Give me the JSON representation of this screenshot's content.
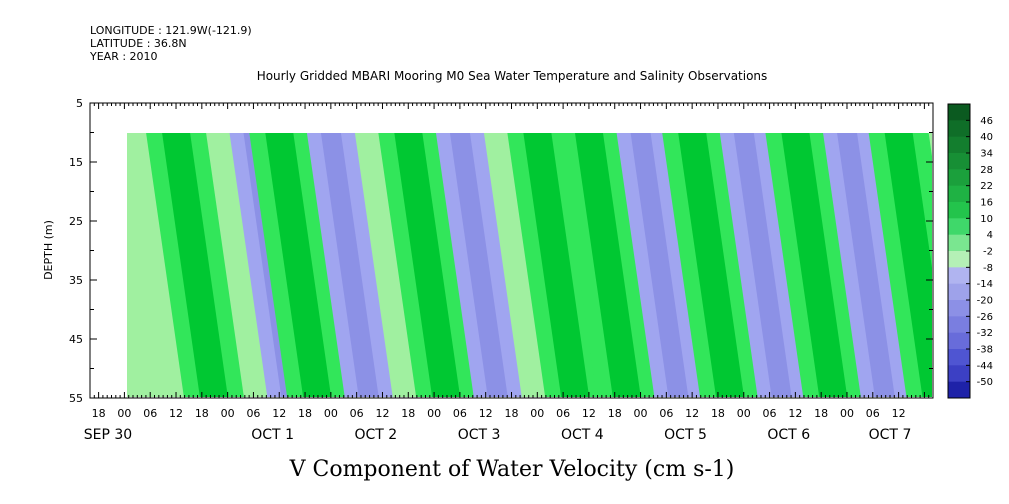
{
  "meta": {
    "longitude": "LONGITUDE : 121.9W(-121.9)",
    "latitude": "LATITUDE : 36.8N",
    "year": "YEAR : 2010"
  },
  "chart_data": {
    "type": "heatmap",
    "title": "Hourly Gridded MBARI Mooring M0 Sea Water Temperature and Salinity Observations",
    "variable_label": "V Component of Water Velocity (cm s-1)",
    "ylabel": "DEPTH (m)",
    "y_range": [
      5,
      55
    ],
    "y_inverted": true,
    "y_ticks": [
      5,
      15,
      25,
      35,
      45,
      55
    ],
    "data_depth_range": [
      10,
      55
    ],
    "x_start": "2010-09-29T16:00",
    "x_data_start": "2010-09-30T00:00",
    "x_end": "2010-10-07T20:00",
    "hour_ticks": [
      "18",
      "00",
      "06",
      "12",
      "18",
      "00",
      "06",
      "12",
      "18",
      "00",
      "06",
      "12",
      "18",
      "00",
      "06",
      "12",
      "18",
      "00",
      "06",
      "12",
      "18",
      "00",
      "06",
      "12",
      "18",
      "00",
      "06",
      "12",
      "18",
      "00",
      "06",
      "12"
    ],
    "day_labels": [
      "SEP 30",
      "OCT  1",
      "OCT  2",
      "OCT  3",
      "OCT  4",
      "OCT  5",
      "OCT  6",
      "OCT  7"
    ],
    "colorbar_levels": [
      46,
      40,
      34,
      28,
      22,
      16,
      10,
      4,
      -2,
      -8,
      -14,
      -20,
      -26,
      -32,
      -38,
      -44,
      -50
    ],
    "colors": {
      "positive_strong": "#00c832",
      "positive_mid": "#32e65a",
      "positive_light": "#a0f0a0",
      "negative_light": "#a0a5f0",
      "negative_mid": "#8c91e6"
    },
    "bands": [
      {
        "time": "2010-09-30T12:00",
        "sign": "positive"
      },
      {
        "time": "2010-10-01T06:00",
        "sign": "negative"
      },
      {
        "time": "2010-10-01T12:00",
        "sign": "positive"
      },
      {
        "time": "2010-10-02T00:00",
        "sign": "negative"
      },
      {
        "time": "2010-10-02T18:00",
        "sign": "positive"
      },
      {
        "time": "2010-10-03T06:00",
        "sign": "negative"
      },
      {
        "time": "2010-10-04T00:00",
        "sign": "positive"
      },
      {
        "time": "2010-10-04T12:00",
        "sign": "positive"
      },
      {
        "time": "2010-10-05T00:00",
        "sign": "negative"
      },
      {
        "time": "2010-10-05T12:00",
        "sign": "positive"
      },
      {
        "time": "2010-10-06T00:00",
        "sign": "negative"
      },
      {
        "time": "2010-10-06T12:00",
        "sign": "positive"
      },
      {
        "time": "2010-10-07T00:00",
        "sign": "negative"
      },
      {
        "time": "2010-10-07T12:00",
        "sign": "positive"
      }
    ]
  }
}
